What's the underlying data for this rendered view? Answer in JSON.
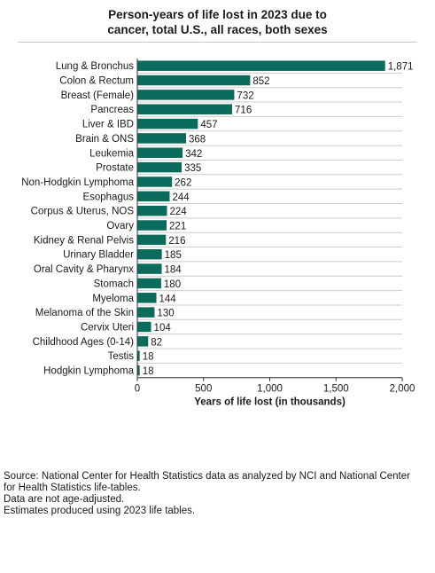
{
  "title_lines": [
    "Person-years of life lost in 2023 due to",
    "cancer, total U.S., all races, both sexes"
  ],
  "footer_lines": [
    "Source: National Center for Health Statistics data as analyzed by NCI and National Center",
    "for Health Statistics life-tables.",
    "Data are not age-adjusted.",
    "Estimates produced using 2023 life tables."
  ],
  "colors": {
    "bar": "#0b6b5c",
    "gridline": "#cccccc",
    "axis": "#333333"
  },
  "chart_data": {
    "type": "bar",
    "orientation": "horizontal",
    "title": "Person-years of life lost in 2023 due to cancer, total U.S., all races, both sexes",
    "xlabel": "Years of life lost (in thousands)",
    "ylabel": "",
    "xlim": [
      0,
      2000
    ],
    "xticks": [
      0,
      500,
      1000,
      1500,
      2000
    ],
    "xtick_labels": [
      "0",
      "500",
      "1,000",
      "1,500",
      "2,000"
    ],
    "grid": "horizontal row separators",
    "categories": [
      "Lung & Bronchus",
      "Colon & Rectum",
      "Breast (Female)",
      "Pancreas",
      "Liver & IBD",
      "Brain & ONS",
      "Leukemia",
      "Prostate",
      "Non-Hodgkin Lymphoma",
      "Esophagus",
      "Corpus & Uterus, NOS",
      "Ovary",
      "Kidney & Renal Pelvis",
      "Urinary Bladder",
      "Oral Cavity & Pharynx",
      "Stomach",
      "Myeloma",
      "Melanoma of the Skin",
      "Cervix Uteri",
      "Childhood Ages (0-14)",
      "Testis",
      "Hodgkin Lymphoma"
    ],
    "values": [
      1871,
      852,
      732,
      716,
      457,
      368,
      342,
      335,
      262,
      244,
      224,
      221,
      216,
      185,
      184,
      180,
      144,
      130,
      104,
      82,
      18,
      18
    ],
    "value_labels": [
      "1,871",
      "852",
      "732",
      "716",
      "457",
      "368",
      "342",
      "335",
      "262",
      "244",
      "224",
      "221",
      "216",
      "185",
      "184",
      "180",
      "144",
      "130",
      "104",
      "82",
      "18",
      "18"
    ]
  }
}
